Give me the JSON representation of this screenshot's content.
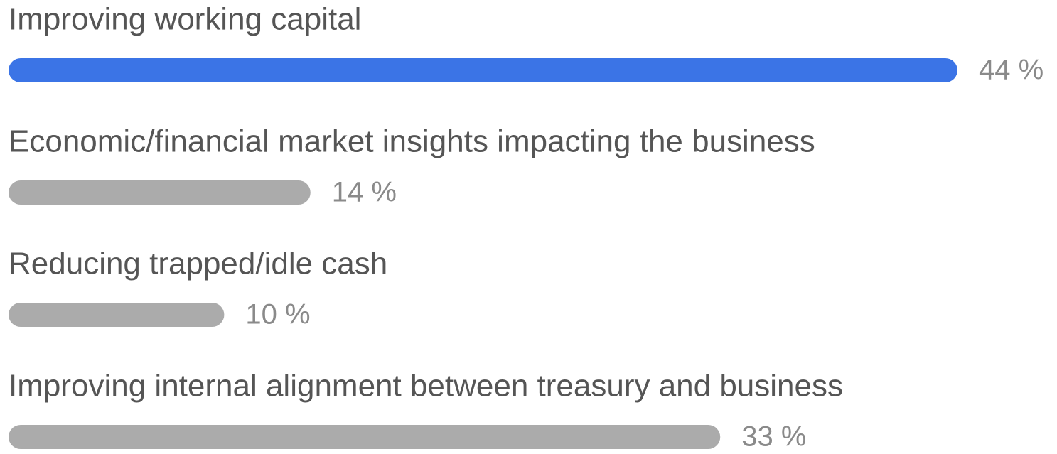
{
  "chart_data": {
    "type": "hbar",
    "categories": [
      "Improving working capital",
      "Economic/financial market insights impacting the business",
      "Reducing trapped/idle cash",
      "Improving internal alignment between treasury and business"
    ],
    "values": [
      44,
      14,
      10,
      33
    ],
    "value_labels": [
      "44 %",
      "14 %",
      "10 %",
      "33 %"
    ],
    "colors": [
      "#3b74e6",
      "#ababab",
      "#ababab",
      "#ababab"
    ],
    "xlim": [
      0,
      44
    ]
  }
}
